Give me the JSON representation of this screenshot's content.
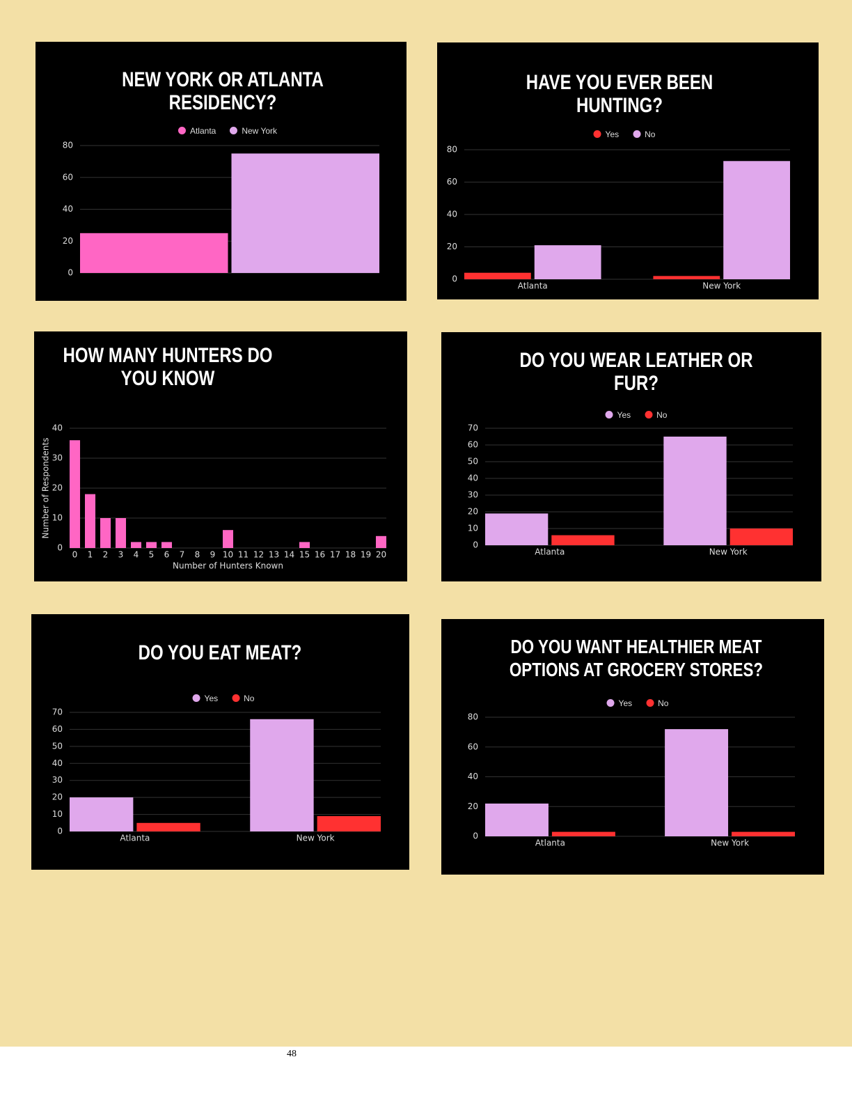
{
  "chart_data": [
    {
      "type": "bar",
      "title": "NEW YORK OR ATLANTA RESIDENCY?",
      "categories": [
        null
      ],
      "series": [
        {
          "name": "Atlanta",
          "color": "#ff66c4",
          "values": [
            25
          ]
        },
        {
          "name": "New York",
          "color": "#e0a8ec",
          "values": [
            75
          ]
        }
      ],
      "ylim": [
        0,
        80
      ],
      "yticks": [
        0,
        20,
        40,
        60,
        80
      ],
      "grid": true,
      "legend": "top"
    },
    {
      "type": "bar",
      "title": "HAVE YOU EVER BEEN HUNTING?",
      "categories": [
        "Atlanta",
        "New York"
      ],
      "series": [
        {
          "name": "Yes",
          "color": "#ff3131",
          "values": [
            4,
            2
          ]
        },
        {
          "name": "No",
          "color": "#e0a8ec",
          "values": [
            21,
            73
          ]
        }
      ],
      "ylim": [
        0,
        80
      ],
      "yticks": [
        0,
        20,
        40,
        60,
        80
      ],
      "grid": true,
      "legend": "top"
    },
    {
      "type": "bar",
      "title": "HOW MANY HUNTERS DO YOU KNOW",
      "x_label": "Number of Hunters Known",
      "y_label": "Number of Respondents",
      "categories": [
        "0",
        "1",
        "2",
        "3",
        "4",
        "5",
        "6",
        "7",
        "8",
        "9",
        "10",
        "11",
        "12",
        "13",
        "14",
        "15",
        "16",
        "17",
        "18",
        "19",
        "20"
      ],
      "series": [
        {
          "color": "#ff66c4",
          "values": [
            36,
            18,
            10,
            10,
            2,
            2,
            2,
            0,
            0,
            0,
            6,
            0,
            0,
            0,
            0,
            2,
            0,
            0,
            0,
            0,
            4
          ]
        }
      ],
      "ylim": [
        0,
        40
      ],
      "yticks": [
        0,
        10,
        20,
        30,
        40
      ],
      "grid": true
    },
    {
      "type": "bar",
      "title": "DO YOU WEAR LEATHER OR FUR?",
      "categories": [
        "Atlanta",
        "New York"
      ],
      "series": [
        {
          "name": "Yes",
          "color": "#e0a8ec",
          "values": [
            19,
            65
          ]
        },
        {
          "name": "No",
          "color": "#ff3131",
          "values": [
            6,
            10
          ]
        }
      ],
      "ylim": [
        0,
        70
      ],
      "yticks": [
        0,
        10,
        20,
        30,
        40,
        50,
        60,
        70
      ],
      "grid": true,
      "legend": "top"
    },
    {
      "type": "bar",
      "title": "DO YOU EAT MEAT?",
      "categories": [
        "Atlanta",
        "New York"
      ],
      "series": [
        {
          "name": "Yes",
          "color": "#e0a8ec",
          "values": [
            20,
            66
          ]
        },
        {
          "name": "No",
          "color": "#ff3131",
          "values": [
            5,
            9
          ]
        }
      ],
      "ylim": [
        0,
        70
      ],
      "yticks": [
        0,
        10,
        20,
        30,
        40,
        50,
        60,
        70
      ],
      "grid": true,
      "legend": "top"
    },
    {
      "type": "bar",
      "title": "DO YOU WANT HEALTHIER MEAT OPTIONS AT GROCERY STORES?",
      "categories": [
        "Atlanta",
        "New York"
      ],
      "series": [
        {
          "name": "Yes",
          "color": "#e0a8ec",
          "values": [
            22,
            72
          ]
        },
        {
          "name": "No",
          "color": "#ff3131",
          "values": [
            3,
            3
          ]
        }
      ],
      "ylim": [
        0,
        80
      ],
      "yticks": [
        0,
        20,
        40,
        60,
        80
      ],
      "grid": true,
      "legend": "top"
    }
  ],
  "page_number": "48"
}
